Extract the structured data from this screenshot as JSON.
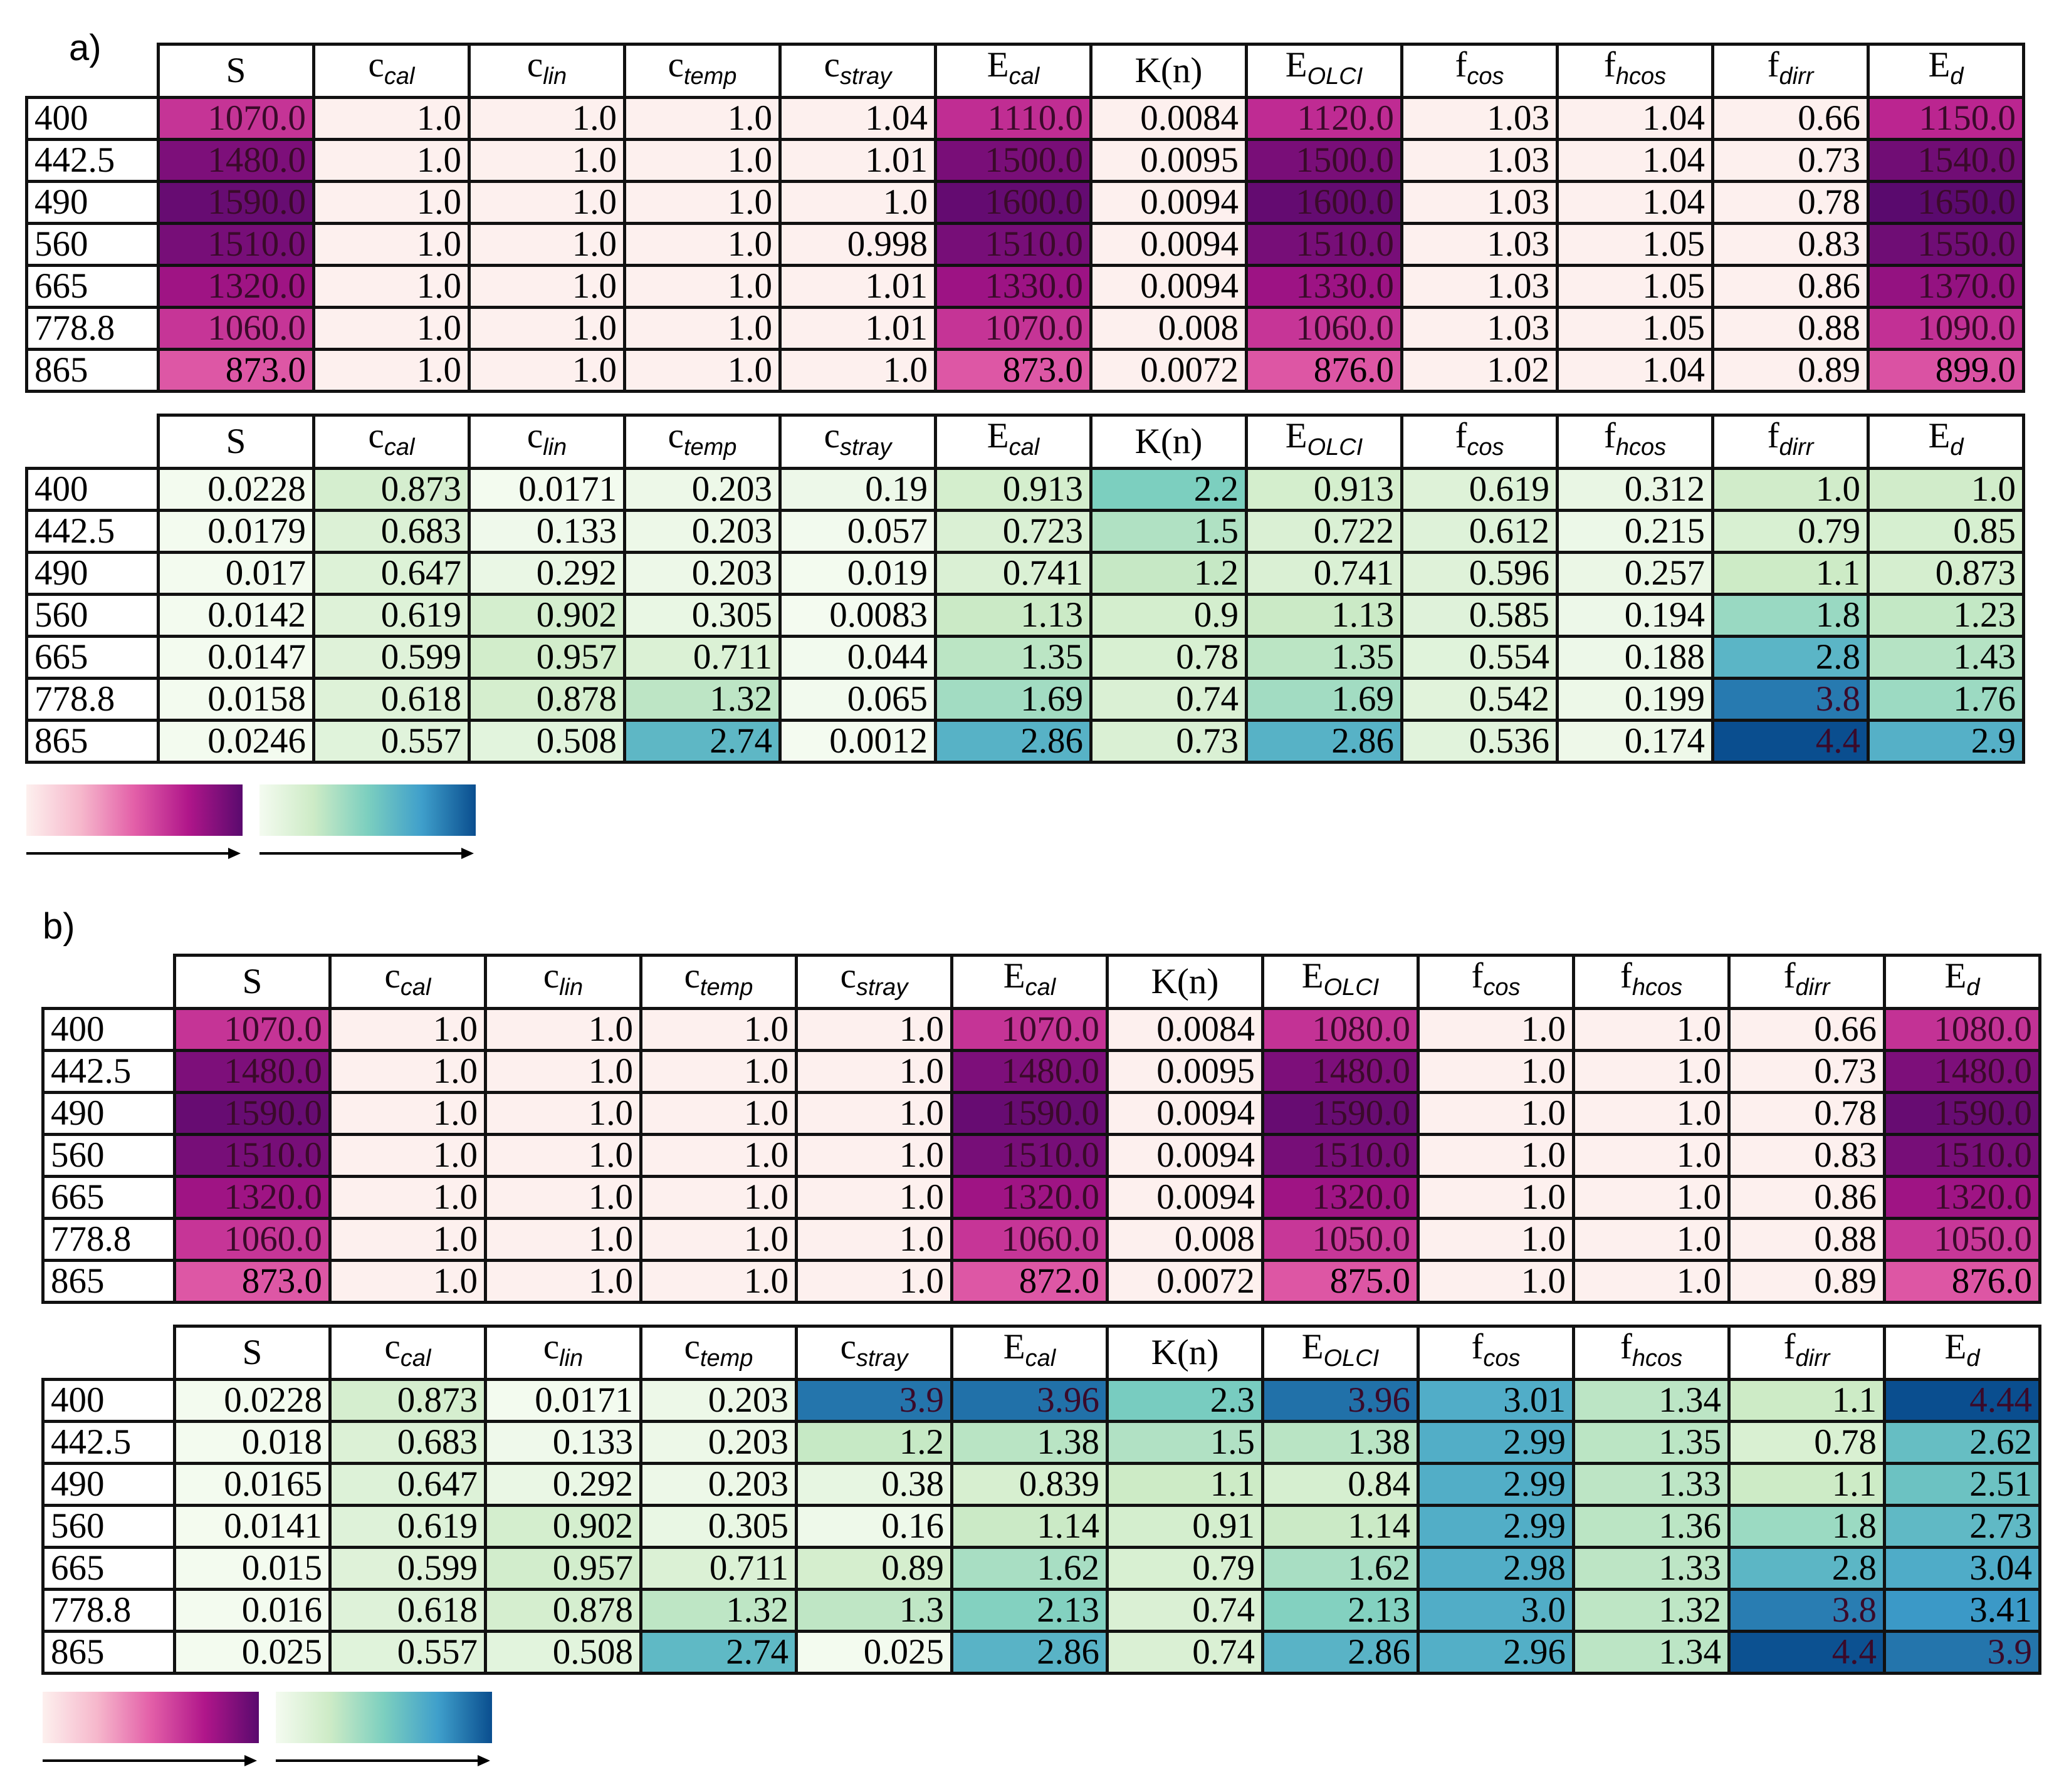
{
  "figure": {
    "columns": [
      {
        "base": "S",
        "sub": ""
      },
      {
        "base": "c",
        "sub": "cal"
      },
      {
        "base": "c",
        "sub": "lin"
      },
      {
        "base": "c",
        "sub": "temp"
      },
      {
        "base": "c",
        "sub": "stray"
      },
      {
        "base": "E",
        "sub": "cal"
      },
      {
        "base": "K(n)",
        "sub": ""
      },
      {
        "base": "E",
        "sub": "OLCI"
      },
      {
        "base": "f",
        "sub": "cos"
      },
      {
        "base": "f",
        "sub": "hcos"
      },
      {
        "base": "f",
        "sub": "dirr"
      },
      {
        "base": "E",
        "sub": "d"
      }
    ],
    "wavelengths": [
      "400",
      "442.5",
      "490",
      "560",
      "665",
      "778.8",
      "865"
    ],
    "colormaps": {
      "values_scale": [
        "#fdf0ee",
        "#f6b8cc",
        "#e35fa8",
        "#b0168a",
        "#5a0a6e"
      ],
      "uncertainty_scale": [
        "#f4fbf0",
        "#cdebc6",
        "#7ccfbf",
        "#3f9fcb",
        "#0a4e8f"
      ]
    },
    "panels": [
      {
        "label": "a)",
        "values_table": {
          "rows": [
            [
              "1070.0",
              "1.0",
              "1.0",
              "1.0",
              "1.04",
              "1110.0",
              "0.0084",
              "1120.0",
              "1.03",
              "1.04",
              "0.66",
              "1150.0"
            ],
            [
              "1480.0",
              "1.0",
              "1.0",
              "1.0",
              "1.01",
              "1500.0",
              "0.0095",
              "1500.0",
              "1.03",
              "1.04",
              "0.73",
              "1540.0"
            ],
            [
              "1590.0",
              "1.0",
              "1.0",
              "1.0",
              "1.0",
              "1600.0",
              "0.0094",
              "1600.0",
              "1.03",
              "1.04",
              "0.78",
              "1650.0"
            ],
            [
              "1510.0",
              "1.0",
              "1.0",
              "1.0",
              "0.998",
              "1510.0",
              "0.0094",
              "1510.0",
              "1.03",
              "1.05",
              "0.83",
              "1550.0"
            ],
            [
              "1320.0",
              "1.0",
              "1.0",
              "1.0",
              "1.01",
              "1330.0",
              "0.0094",
              "1330.0",
              "1.03",
              "1.05",
              "0.86",
              "1370.0"
            ],
            [
              "1060.0",
              "1.0",
              "1.0",
              "1.0",
              "1.01",
              "1070.0",
              "0.008",
              "1060.0",
              "1.03",
              "1.05",
              "0.88",
              "1090.0"
            ],
            [
              "873.0",
              "1.0",
              "1.0",
              "1.0",
              "1.0",
              "873.0",
              "0.0072",
              "876.0",
              "1.02",
              "1.04",
              "0.89",
              "899.0"
            ]
          ]
        },
        "uncertainty_table": {
          "rows": [
            [
              "0.0228",
              "0.873",
              "0.0171",
              "0.203",
              "0.19",
              "0.913",
              "2.2",
              "0.913",
              "0.619",
              "0.312",
              "1.0",
              "1.0"
            ],
            [
              "0.0179",
              "0.683",
              "0.133",
              "0.203",
              "0.057",
              "0.723",
              "1.5",
              "0.722",
              "0.612",
              "0.215",
              "0.79",
              "0.85"
            ],
            [
              "0.017",
              "0.647",
              "0.292",
              "0.203",
              "0.019",
              "0.741",
              "1.2",
              "0.741",
              "0.596",
              "0.257",
              "1.1",
              "0.873"
            ],
            [
              "0.0142",
              "0.619",
              "0.902",
              "0.305",
              "0.0083",
              "1.13",
              "0.9",
              "1.13",
              "0.585",
              "0.194",
              "1.8",
              "1.23"
            ],
            [
              "0.0147",
              "0.599",
              "0.957",
              "0.711",
              "0.044",
              "1.35",
              "0.78",
              "1.35",
              "0.554",
              "0.188",
              "2.8",
              "1.43"
            ],
            [
              "0.0158",
              "0.618",
              "0.878",
              "1.32",
              "0.065",
              "1.69",
              "0.74",
              "1.69",
              "0.542",
              "0.199",
              "3.8",
              "1.76"
            ],
            [
              "0.0246",
              "0.557",
              "0.508",
              "2.74",
              "0.0012",
              "2.86",
              "0.73",
              "2.86",
              "0.536",
              "0.174",
              "4.4",
              "2.9"
            ]
          ]
        }
      },
      {
        "label": "b)",
        "values_table": {
          "rows": [
            [
              "1070.0",
              "1.0",
              "1.0",
              "1.0",
              "1.0",
              "1070.0",
              "0.0084",
              "1080.0",
              "1.0",
              "1.0",
              "0.66",
              "1080.0"
            ],
            [
              "1480.0",
              "1.0",
              "1.0",
              "1.0",
              "1.0",
              "1480.0",
              "0.0095",
              "1480.0",
              "1.0",
              "1.0",
              "0.73",
              "1480.0"
            ],
            [
              "1590.0",
              "1.0",
              "1.0",
              "1.0",
              "1.0",
              "1590.0",
              "0.0094",
              "1590.0",
              "1.0",
              "1.0",
              "0.78",
              "1590.0"
            ],
            [
              "1510.0",
              "1.0",
              "1.0",
              "1.0",
              "1.0",
              "1510.0",
              "0.0094",
              "1510.0",
              "1.0",
              "1.0",
              "0.83",
              "1510.0"
            ],
            [
              "1320.0",
              "1.0",
              "1.0",
              "1.0",
              "1.0",
              "1320.0",
              "0.0094",
              "1320.0",
              "1.0",
              "1.0",
              "0.86",
              "1320.0"
            ],
            [
              "1060.0",
              "1.0",
              "1.0",
              "1.0",
              "1.0",
              "1060.0",
              "0.008",
              "1050.0",
              "1.0",
              "1.0",
              "0.88",
              "1050.0"
            ],
            [
              "873.0",
              "1.0",
              "1.0",
              "1.0",
              "1.0",
              "872.0",
              "0.0072",
              "875.0",
              "1.0",
              "1.0",
              "0.89",
              "876.0"
            ]
          ]
        },
        "uncertainty_table": {
          "rows": [
            [
              "0.0228",
              "0.873",
              "0.0171",
              "0.203",
              "3.9",
              "3.96",
              "2.3",
              "3.96",
              "3.01",
              "1.34",
              "1.1",
              "4.44"
            ],
            [
              "0.018",
              "0.683",
              "0.133",
              "0.203",
              "1.2",
              "1.38",
              "1.5",
              "1.38",
              "2.99",
              "1.35",
              "0.78",
              "2.62"
            ],
            [
              "0.0165",
              "0.647",
              "0.292",
              "0.203",
              "0.38",
              "0.839",
              "1.1",
              "0.84",
              "2.99",
              "1.33",
              "1.1",
              "2.51"
            ],
            [
              "0.0141",
              "0.619",
              "0.902",
              "0.305",
              "0.16",
              "1.14",
              "0.91",
              "1.14",
              "2.99",
              "1.36",
              "1.8",
              "2.73"
            ],
            [
              "0.015",
              "0.599",
              "0.957",
              "0.711",
              "0.89",
              "1.62",
              "0.79",
              "1.62",
              "2.98",
              "1.33",
              "2.8",
              "3.04"
            ],
            [
              "0.016",
              "0.618",
              "0.878",
              "1.32",
              "1.3",
              "2.13",
              "0.74",
              "2.13",
              "3.0",
              "1.32",
              "3.8",
              "3.41"
            ],
            [
              "0.025",
              "0.557",
              "0.508",
              "2.74",
              "0.025",
              "2.86",
              "0.74",
              "2.86",
              "2.96",
              "1.34",
              "4.4",
              "3.9"
            ]
          ]
        }
      }
    ]
  }
}
